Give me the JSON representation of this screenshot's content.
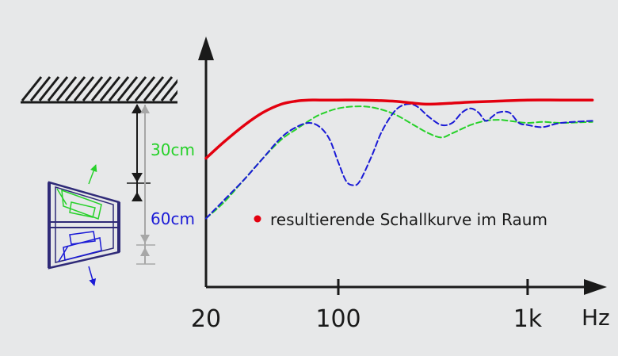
{
  "colors": {
    "background": "#e7e8e9",
    "axis": "#1a1a1a",
    "resulting": "#e3000f",
    "green": "#27d12a",
    "blue": "#1a1ad6",
    "dimension": "#a7a7a7",
    "box_outline": "#2f2a78"
  },
  "labels": {
    "distance_30": "30cm",
    "distance_60": "60cm",
    "legend_text": "resultierende Schallkurve im Raum",
    "unit": "Hz"
  },
  "chart_data": {
    "type": "line",
    "xscale": "log",
    "x_ticks": [
      {
        "value": 20,
        "label": "20"
      },
      {
        "value": 100,
        "label": "100"
      },
      {
        "value": 1000,
        "label": "1k"
      }
    ],
    "xlim": [
      20,
      2200
    ],
    "ylim": [
      0,
      100
    ],
    "grid": false,
    "legend": "resultierende Schallkurve im Raum",
    "series": [
      {
        "key": "resulting",
        "style": "solid",
        "x": [
          20,
          25,
          32,
          40,
          50,
          60,
          70,
          80,
          100,
          130,
          160,
          200,
          250,
          300,
          400,
          500,
          700,
          1000,
          1500,
          2200
        ],
        "y": [
          62,
          70,
          78,
          84,
          88,
          89.5,
          90,
          90,
          90,
          90,
          89.8,
          89.4,
          88.5,
          88,
          88.5,
          89,
          89.5,
          90,
          90,
          90
        ]
      },
      {
        "key": "green",
        "style": "dashed",
        "x": [
          20,
          25,
          32,
          40,
          50,
          60,
          70,
          80,
          100,
          130,
          160,
          200,
          250,
          300,
          350,
          400,
          500,
          600,
          700,
          800,
          1000,
          1200,
          1500,
          2200
        ],
        "y": [
          33,
          41,
          52,
          62,
          71,
          76,
          80,
          83,
          86,
          87,
          86,
          83,
          78,
          74,
          72,
          74,
          78,
          80,
          80.5,
          80,
          79,
          79.5,
          79,
          79.5
        ]
      },
      {
        "key": "blue",
        "style": "dashed",
        "x": [
          20,
          25,
          32,
          40,
          50,
          60,
          70,
          80,
          90,
          100,
          110,
          120,
          130,
          150,
          170,
          200,
          230,
          260,
          300,
          350,
          400,
          450,
          500,
          550,
          600,
          650,
          700,
          800,
          900,
          1000,
          1200,
          1500,
          2200
        ],
        "y": [
          33,
          42,
          52,
          62,
          72,
          77,
          79,
          77,
          71,
          60,
          51,
          49,
          51,
          63,
          75,
          85,
          88,
          87,
          82,
          78,
          79,
          84,
          86,
          84,
          80,
          82,
          84,
          84,
          79,
          78,
          77,
          79,
          80
        ]
      }
    ]
  }
}
